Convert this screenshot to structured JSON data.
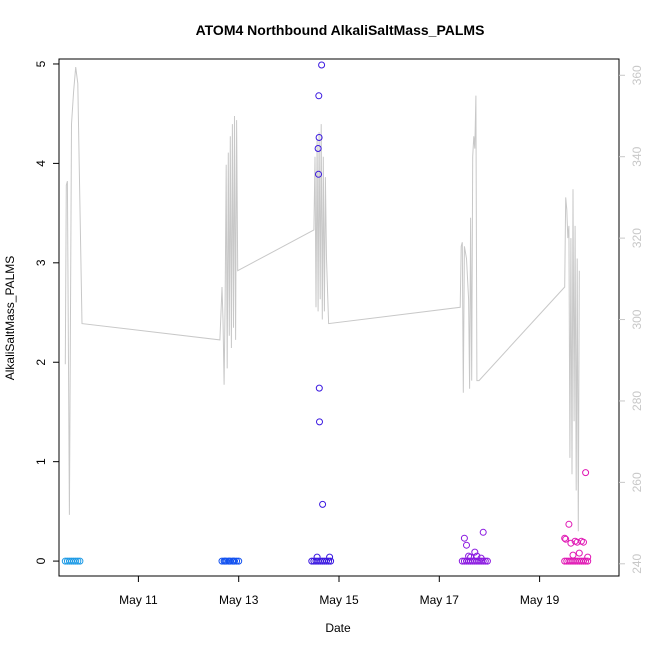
{
  "chart_data": {
    "type": "scatter",
    "title": "ATOM4 Northbound AlkaliSaltMass_PALMS",
    "xlabel": "Date",
    "ylabel": "AlkaliSaltMass_PALMS",
    "xlim": [
      "2017-05-09T10:00",
      "2017-05-20T14:00"
    ],
    "ylim": [
      -0.15,
      5.05
    ],
    "y2lim": [
      237,
      364
    ],
    "x_ticks": [
      {
        "label": "May 11",
        "value": "2017-05-11T00:00"
      },
      {
        "label": "May 13",
        "value": "2017-05-13T00:00"
      },
      {
        "label": "May 15",
        "value": "2017-05-15T00:00"
      },
      {
        "label": "May 17",
        "value": "2017-05-17T00:00"
      },
      {
        "label": "May 19",
        "value": "2017-05-19T00:00"
      }
    ],
    "y_ticks": [
      "0",
      "1",
      "2",
      "3",
      "4",
      "5"
    ],
    "y2_ticks": [
      "240",
      "260",
      "280",
      "300",
      "320",
      "340",
      "360"
    ],
    "grid": false,
    "legend": "none",
    "series": [
      {
        "color": "#1e9be6",
        "marker": "open-circle",
        "points": [
          [
            "2017-05-09T13:00",
            0.0
          ],
          [
            "2017-05-09T14:00",
            0.0
          ],
          [
            "2017-05-09T15:00",
            0.0
          ],
          [
            "2017-05-09T16:00",
            0.0
          ],
          [
            "2017-05-09T17:00",
            0.0
          ],
          [
            "2017-05-09T18:00",
            0.0
          ],
          [
            "2017-05-09T19:00",
            0.0
          ],
          [
            "2017-05-09T20:00",
            0.0
          ]
        ]
      },
      {
        "color": "#1453f0",
        "marker": "open-circle",
        "points": [
          [
            "2017-05-12T16:00",
            0.0
          ],
          [
            "2017-05-12T17:00",
            0.0
          ],
          [
            "2017-05-12T18:00",
            0.0
          ],
          [
            "2017-05-12T19:00",
            0.0
          ],
          [
            "2017-05-12T20:00",
            0.0
          ],
          [
            "2017-05-12T21:00",
            0.0
          ],
          [
            "2017-05-12T22:00",
            0.0
          ],
          [
            "2017-05-12T23:00",
            0.0
          ],
          [
            "2017-05-13T00:00",
            0.0
          ],
          [
            "2017-05-12T17:30",
            0.0
          ],
          [
            "2017-05-12T19:30",
            0.0
          ],
          [
            "2017-05-12T21:30",
            0.0
          ]
        ]
      },
      {
        "color": "#3a18e0",
        "marker": "open-circle",
        "points": [
          [
            "2017-05-14T11:00",
            0.0
          ],
          [
            "2017-05-14T12:00",
            0.0
          ],
          [
            "2017-05-14T13:00",
            0.0
          ],
          [
            "2017-05-14T14:00",
            0.0
          ],
          [
            "2017-05-14T15:00",
            0.0
          ],
          [
            "2017-05-14T16:00",
            0.0
          ],
          [
            "2017-05-14T17:00",
            0.0
          ],
          [
            "2017-05-14T18:00",
            0.0
          ],
          [
            "2017-05-14T19:00",
            0.0
          ],
          [
            "2017-05-14T20:00",
            0.0
          ],
          [
            "2017-05-14T13:30",
            0.04
          ],
          [
            "2017-05-14T19:30",
            0.04
          ],
          [
            "2017-05-14T14:00",
            4.15
          ],
          [
            "2017-05-14T14:10",
            3.89
          ],
          [
            "2017-05-14T14:20",
            4.68
          ],
          [
            "2017-05-14T14:30",
            4.26
          ],
          [
            "2017-05-14T14:35",
            1.74
          ],
          [
            "2017-05-14T14:40",
            1.4
          ],
          [
            "2017-05-14T15:40",
            4.99
          ],
          [
            "2017-05-14T16:10",
            0.57
          ]
        ]
      },
      {
        "color": "#8a18e0",
        "marker": "open-circle",
        "points": [
          [
            "2017-05-17T11:00",
            0.0
          ],
          [
            "2017-05-17T12:00",
            0.0
          ],
          [
            "2017-05-17T13:00",
            0.0
          ],
          [
            "2017-05-17T14:00",
            0.0
          ],
          [
            "2017-05-17T15:00",
            0.0
          ],
          [
            "2017-05-17T16:00",
            0.0
          ],
          [
            "2017-05-17T17:00",
            0.0
          ],
          [
            "2017-05-17T18:00",
            0.0
          ],
          [
            "2017-05-17T19:00",
            0.0
          ],
          [
            "2017-05-17T20:00",
            0.0
          ],
          [
            "2017-05-17T21:00",
            0.0
          ],
          [
            "2017-05-17T22:00",
            0.0
          ],
          [
            "2017-05-17T23:00",
            0.0
          ],
          [
            "2017-05-17T12:00",
            0.23
          ],
          [
            "2017-05-17T13:00",
            0.16
          ],
          [
            "2017-05-17T14:00",
            0.05
          ],
          [
            "2017-05-17T15:00",
            0.04
          ],
          [
            "2017-05-17T17:00",
            0.09
          ],
          [
            "2017-05-17T18:00",
            0.05
          ],
          [
            "2017-05-17T21:00",
            0.29
          ],
          [
            "2017-05-17T20:00",
            0.03
          ]
        ]
      },
      {
        "color": "#e018b4",
        "marker": "open-circle",
        "points": [
          [
            "2017-05-19T12:00",
            0.0
          ],
          [
            "2017-05-19T13:00",
            0.0
          ],
          [
            "2017-05-19T14:00",
            0.0
          ],
          [
            "2017-05-19T15:00",
            0.0
          ],
          [
            "2017-05-19T16:00",
            0.0
          ],
          [
            "2017-05-19T17:00",
            0.0
          ],
          [
            "2017-05-19T18:00",
            0.0
          ],
          [
            "2017-05-19T19:00",
            0.0
          ],
          [
            "2017-05-19T20:00",
            0.0
          ],
          [
            "2017-05-19T21:00",
            0.0
          ],
          [
            "2017-05-19T22:00",
            0.0
          ],
          [
            "2017-05-19T23:00",
            0.0
          ],
          [
            "2017-05-19T12:00",
            0.23
          ],
          [
            "2017-05-19T12:30",
            0.22
          ],
          [
            "2017-05-19T14:00",
            0.37
          ],
          [
            "2017-05-19T15:00",
            0.18
          ],
          [
            "2017-05-19T17:00",
            0.2
          ],
          [
            "2017-05-19T18:00",
            0.19
          ],
          [
            "2017-05-19T20:00",
            0.2
          ],
          [
            "2017-05-19T21:00",
            0.19
          ],
          [
            "2017-05-19T22:00",
            0.89
          ],
          [
            "2017-05-19T16:00",
            0.06
          ],
          [
            "2017-05-19T19:00",
            0.08
          ],
          [
            "2017-05-19T23:00",
            0.04
          ]
        ]
      }
    ],
    "secondary_line": {
      "color": "#c8c8c8",
      "axis": "right",
      "points": [
        [
          "2017-05-09T13:00",
          289
        ],
        [
          "2017-05-09T13:30",
          333
        ],
        [
          "2017-05-09T14:00",
          334
        ],
        [
          "2017-05-09T15:00",
          252
        ],
        [
          "2017-05-09T16:00",
          348
        ],
        [
          "2017-05-09T17:00",
          356
        ],
        [
          "2017-05-09T18:00",
          362
        ],
        [
          "2017-05-09T19:00",
          358
        ],
        [
          "2017-05-09T21:00",
          299
        ],
        [
          "2017-05-12T15:00",
          295
        ],
        [
          "2017-05-12T16:00",
          308
        ],
        [
          "2017-05-12T16:30",
          300
        ],
        [
          "2017-05-12T17:00",
          284
        ],
        [
          "2017-05-12T17:30",
          304
        ],
        [
          "2017-05-12T18:00",
          338
        ],
        [
          "2017-05-12T18:30",
          288
        ],
        [
          "2017-05-12T19:00",
          341
        ],
        [
          "2017-05-12T19:30",
          296
        ],
        [
          "2017-05-12T20:00",
          345
        ],
        [
          "2017-05-12T20:30",
          293
        ],
        [
          "2017-05-12T21:00",
          348
        ],
        [
          "2017-05-12T21:30",
          298
        ],
        [
          "2017-05-12T22:00",
          350
        ],
        [
          "2017-05-12T22:30",
          295
        ],
        [
          "2017-05-12T23:00",
          349
        ],
        [
          "2017-05-12T23:30",
          312
        ],
        [
          "2017-05-14T12:00",
          322
        ],
        [
          "2017-05-14T12:30",
          340
        ],
        [
          "2017-05-14T13:00",
          303
        ],
        [
          "2017-05-14T13:30",
          344
        ],
        [
          "2017-05-14T14:00",
          302
        ],
        [
          "2017-05-14T14:30",
          346
        ],
        [
          "2017-05-14T15:00",
          305
        ],
        [
          "2017-05-14T15:30",
          348
        ],
        [
          "2017-05-14T16:00",
          300
        ],
        [
          "2017-05-14T16:30",
          340
        ],
        [
          "2017-05-14T17:00",
          302
        ],
        [
          "2017-05-14T17:30",
          335
        ],
        [
          "2017-05-14T18:00",
          315
        ],
        [
          "2017-05-14T19:00",
          299
        ],
        [
          "2017-05-17T10:00",
          303
        ],
        [
          "2017-05-17T10:30",
          318
        ],
        [
          "2017-05-17T11:00",
          319
        ],
        [
          "2017-05-17T11:30",
          282
        ],
        [
          "2017-05-17T12:00",
          318
        ],
        [
          "2017-05-17T13:00",
          315
        ],
        [
          "2017-05-17T14:00",
          305
        ],
        [
          "2017-05-17T14:30",
          283
        ],
        [
          "2017-05-17T15:00",
          325
        ],
        [
          "2017-05-17T15:30",
          285
        ],
        [
          "2017-05-17T16:00",
          340
        ],
        [
          "2017-05-17T16:30",
          345
        ],
        [
          "2017-05-17T17:00",
          342
        ],
        [
          "2017-05-17T17:30",
          355
        ],
        [
          "2017-05-17T18:00",
          285
        ],
        [
          "2017-05-17T19:00",
          285
        ],
        [
          "2017-05-19T12:00",
          308
        ],
        [
          "2017-05-19T12:30",
          330
        ],
        [
          "2017-05-19T13:00",
          327
        ],
        [
          "2017-05-19T13:30",
          320
        ],
        [
          "2017-05-19T14:00",
          323
        ],
        [
          "2017-05-19T14:30",
          266
        ],
        [
          "2017-05-19T15:00",
          320
        ],
        [
          "2017-05-19T15:30",
          262
        ],
        [
          "2017-05-19T16:00",
          332
        ],
        [
          "2017-05-19T16:30",
          275
        ],
        [
          "2017-05-19T17:00",
          323
        ],
        [
          "2017-05-19T17:30",
          258
        ],
        [
          "2017-05-19T18:00",
          315
        ],
        [
          "2017-05-19T18:30",
          248
        ],
        [
          "2017-05-19T19:00",
          312
        ]
      ]
    }
  }
}
